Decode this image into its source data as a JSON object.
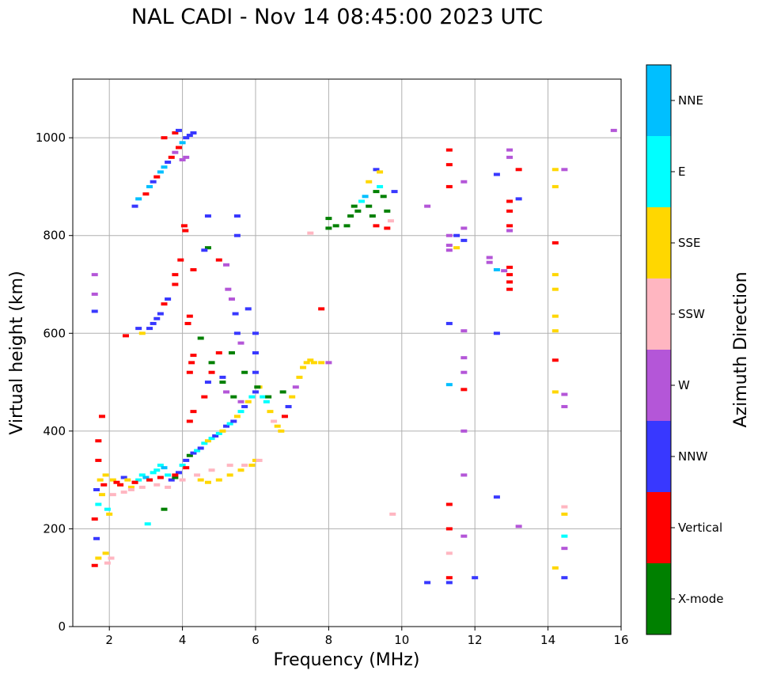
{
  "chart_data": {
    "type": "scatter",
    "title": "NAL CADI - Nov 14 08:45:00 2023 UTC",
    "xlabel": "Frequency (MHz)",
    "ylabel": "Virtual height (km)",
    "xlim": [
      1,
      16
    ],
    "ylim": [
      0,
      1120
    ],
    "xticks": [
      2,
      4,
      6,
      8,
      10,
      12,
      14,
      16
    ],
    "yticks": [
      0,
      200,
      400,
      600,
      800,
      1000
    ],
    "grid": true,
    "colorbar": {
      "title": "Azimuth Direction",
      "categories": [
        {
          "name": "X-mode",
          "color": "#008000"
        },
        {
          "name": "Vertical",
          "color": "#ff0000"
        },
        {
          "name": "NNW",
          "color": "#3838ff"
        },
        {
          "name": "W",
          "color": "#b456d8"
        },
        {
          "name": "SSW",
          "color": "#ffb6c1"
        },
        {
          "name": "SSE",
          "color": "#ffd700"
        },
        {
          "name": "E",
          "color": "#00ffff"
        },
        {
          "name": "NNE",
          "color": "#00bfff"
        }
      ]
    },
    "points": [
      [
        1.6,
        125,
        "Vertical"
      ],
      [
        1.65,
        180,
        "NNW"
      ],
      [
        1.7,
        140,
        "SSE"
      ],
      [
        1.6,
        220,
        "Vertical"
      ],
      [
        1.7,
        250,
        "E"
      ],
      [
        1.65,
        280,
        "NNW"
      ],
      [
        1.75,
        300,
        "SSE"
      ],
      [
        1.7,
        340,
        "Vertical"
      ],
      [
        1.7,
        380,
        "Vertical"
      ],
      [
        1.8,
        430,
        "Vertical"
      ],
      [
        1.6,
        720,
        "W"
      ],
      [
        1.6,
        680,
        "W"
      ],
      [
        1.6,
        645,
        "NNW"
      ],
      [
        1.8,
        270,
        "SSE"
      ],
      [
        1.85,
        290,
        "Vertical"
      ],
      [
        1.9,
        310,
        "SSE"
      ],
      [
        1.95,
        240,
        "E"
      ],
      [
        2.0,
        230,
        "SSE"
      ],
      [
        1.9,
        150,
        "SSE"
      ],
      [
        1.95,
        130,
        "SSW"
      ],
      [
        2.05,
        140,
        "SSW"
      ],
      [
        2.1,
        300,
        "SSE"
      ],
      [
        2.2,
        295,
        "Vertical"
      ],
      [
        2.3,
        290,
        "SSE"
      ],
      [
        2.4,
        305,
        "NNW"
      ],
      [
        2.5,
        300,
        "SSE"
      ],
      [
        2.6,
        285,
        "SSE"
      ],
      [
        2.7,
        295,
        "Vertical"
      ],
      [
        2.8,
        300,
        "E"
      ],
      [
        2.9,
        310,
        "E"
      ],
      [
        3.0,
        305,
        "NNE"
      ],
      [
        3.1,
        300,
        "E"
      ],
      [
        3.2,
        315,
        "E"
      ],
      [
        3.3,
        320,
        "E"
      ],
      [
        3.4,
        330,
        "E"
      ],
      [
        3.5,
        325,
        "NNE"
      ],
      [
        3.6,
        310,
        "E"
      ],
      [
        3.7,
        300,
        "NNW"
      ],
      [
        3.8,
        305,
        "X-mode"
      ],
      [
        3.9,
        315,
        "NNW"
      ],
      [
        4.0,
        330,
        "E"
      ],
      [
        4.1,
        340,
        "NNW"
      ],
      [
        4.2,
        350,
        "X-mode"
      ],
      [
        4.3,
        355,
        "NNW"
      ],
      [
        4.4,
        360,
        "E"
      ],
      [
        4.5,
        365,
        "NNW"
      ],
      [
        4.6,
        375,
        "E"
      ],
      [
        4.7,
        380,
        "SSE"
      ],
      [
        4.8,
        385,
        "E"
      ],
      [
        4.9,
        390,
        "NNW"
      ],
      [
        5.0,
        395,
        "E"
      ],
      [
        5.1,
        400,
        "SSE"
      ],
      [
        5.2,
        410,
        "NNW"
      ],
      [
        5.3,
        415,
        "E"
      ],
      [
        5.4,
        420,
        "NNW"
      ],
      [
        5.5,
        430,
        "SSE"
      ],
      [
        5.6,
        440,
        "E"
      ],
      [
        5.7,
        450,
        "NNW"
      ],
      [
        5.8,
        460,
        "SSE"
      ],
      [
        5.9,
        470,
        "E"
      ],
      [
        6.0,
        480,
        "NNW"
      ],
      [
        6.1,
        490,
        "SSE"
      ],
      [
        6.2,
        470,
        "E"
      ],
      [
        6.3,
        460,
        "E"
      ],
      [
        6.4,
        440,
        "SSE"
      ],
      [
        6.5,
        420,
        "SSW"
      ],
      [
        6.6,
        410,
        "SSE"
      ],
      [
        6.7,
        400,
        "SSE"
      ],
      [
        6.8,
        430,
        "Vertical"
      ],
      [
        6.9,
        450,
        "NNW"
      ],
      [
        7.0,
        470,
        "SSE"
      ],
      [
        7.1,
        490,
        "W"
      ],
      [
        7.2,
        510,
        "SSE"
      ],
      [
        7.3,
        530,
        "SSE"
      ],
      [
        7.4,
        540,
        "SSE"
      ],
      [
        7.5,
        545,
        "SSE"
      ],
      [
        7.6,
        540,
        "SSE"
      ],
      [
        7.8,
        540,
        "SSE"
      ],
      [
        8.0,
        540,
        "W"
      ],
      [
        4.5,
        300,
        "SSE"
      ],
      [
        4.7,
        295,
        "SSE"
      ],
      [
        5.0,
        300,
        "SSE"
      ],
      [
        5.3,
        310,
        "SSE"
      ],
      [
        5.6,
        320,
        "SSE"
      ],
      [
        5.9,
        330,
        "SSE"
      ],
      [
        6.0,
        340,
        "SSE"
      ],
      [
        2.6,
        280,
        "SSW"
      ],
      [
        2.9,
        285,
        "SSW"
      ],
      [
        3.3,
        290,
        "SSW"
      ],
      [
        3.6,
        285,
        "SSW"
      ],
      [
        4.0,
        300,
        "SSW"
      ],
      [
        4.4,
        310,
        "SSW"
      ],
      [
        4.8,
        320,
        "SSW"
      ],
      [
        5.3,
        330,
        "SSW"
      ],
      [
        5.7,
        330,
        "SSW"
      ],
      [
        6.1,
        340,
        "SSW"
      ],
      [
        2.1,
        270,
        "SSW"
      ],
      [
        2.4,
        275,
        "SSW"
      ],
      [
        2.3,
        290,
        "Vertical"
      ],
      [
        2.7,
        295,
        "Vertical"
      ],
      [
        3.1,
        300,
        "Vertical"
      ],
      [
        3.4,
        305,
        "Vertical"
      ],
      [
        3.8,
        310,
        "Vertical"
      ],
      [
        4.1,
        325,
        "Vertical"
      ],
      [
        4.2,
        420,
        "Vertical"
      ],
      [
        4.3,
        440,
        "Vertical"
      ],
      [
        4.2,
        520,
        "Vertical"
      ],
      [
        4.25,
        540,
        "Vertical"
      ],
      [
        4.3,
        555,
        "Vertical"
      ],
      [
        4.15,
        620,
        "Vertical"
      ],
      [
        4.2,
        635,
        "Vertical"
      ],
      [
        4.05,
        820,
        "Vertical"
      ],
      [
        4.08,
        810,
        "Vertical"
      ],
      [
        3.95,
        750,
        "Vertical"
      ],
      [
        3.8,
        720,
        "Vertical"
      ],
      [
        3.8,
        700,
        "Vertical"
      ],
      [
        4.3,
        730,
        "Vertical"
      ],
      [
        3.05,
        210,
        "E"
      ],
      [
        3.5,
        240,
        "X-mode"
      ],
      [
        4.5,
        590,
        "X-mode"
      ],
      [
        4.8,
        540,
        "X-mode"
      ],
      [
        5.1,
        500,
        "X-mode"
      ],
      [
        5.4,
        470,
        "X-mode"
      ],
      [
        5.35,
        560,
        "X-mode"
      ],
      [
        5.7,
        520,
        "X-mode"
      ],
      [
        6.05,
        490,
        "X-mode"
      ],
      [
        6.35,
        470,
        "X-mode"
      ],
      [
        6.75,
        480,
        "X-mode"
      ],
      [
        4.7,
        775,
        "X-mode"
      ],
      [
        4.6,
        770,
        "NNW"
      ],
      [
        5.0,
        750,
        "Vertical"
      ],
      [
        5.2,
        740,
        "W"
      ],
      [
        5.25,
        690,
        "W"
      ],
      [
        5.35,
        670,
        "W"
      ],
      [
        5.45,
        640,
        "NNW"
      ],
      [
        5.5,
        600,
        "NNW"
      ],
      [
        5.6,
        580,
        "W"
      ],
      [
        5.0,
        560,
        "Vertical"
      ],
      [
        4.8,
        520,
        "Vertical"
      ],
      [
        4.7,
        500,
        "NNW"
      ],
      [
        4.6,
        470,
        "Vertical"
      ],
      [
        5.1,
        510,
        "NNW"
      ],
      [
        5.2,
        480,
        "W"
      ],
      [
        5.6,
        460,
        "W"
      ],
      [
        6.0,
        520,
        "NNW"
      ],
      [
        6.0,
        560,
        "NNW"
      ],
      [
        6.0,
        600,
        "NNW"
      ],
      [
        5.8,
        650,
        "NNW"
      ],
      [
        5.5,
        800,
        "NNW"
      ],
      [
        5.5,
        840,
        "NNW"
      ],
      [
        4.7,
        840,
        "NNW"
      ],
      [
        3.1,
        610,
        "NNW"
      ],
      [
        3.2,
        620,
        "NNW"
      ],
      [
        3.3,
        630,
        "NNW"
      ],
      [
        3.4,
        640,
        "NNW"
      ],
      [
        3.5,
        660,
        "Vertical"
      ],
      [
        3.6,
        670,
        "NNW"
      ],
      [
        2.8,
        610,
        "NNW"
      ],
      [
        2.9,
        600,
        "SSE"
      ],
      [
        2.45,
        595,
        "Vertical"
      ],
      [
        2.7,
        860,
        "NNW"
      ],
      [
        2.8,
        875,
        "NNE"
      ],
      [
        3.0,
        885,
        "Vertical"
      ],
      [
        3.1,
        900,
        "NNE"
      ],
      [
        3.2,
        910,
        "NNW"
      ],
      [
        3.3,
        920,
        "Vertical"
      ],
      [
        3.4,
        930,
        "NNE"
      ],
      [
        3.5,
        940,
        "NNE"
      ],
      [
        3.6,
        950,
        "NNW"
      ],
      [
        3.7,
        960,
        "Vertical"
      ],
      [
        3.8,
        970,
        "W"
      ],
      [
        3.9,
        980,
        "Vertical"
      ],
      [
        4.0,
        990,
        "NNE"
      ],
      [
        4.1,
        1000,
        "NNW"
      ],
      [
        4.2,
        1005,
        "NNW"
      ],
      [
        4.3,
        1010,
        "NNW"
      ],
      [
        3.8,
        1010,
        "Vertical"
      ],
      [
        3.5,
        1000,
        "Vertical"
      ],
      [
        3.9,
        1015,
        "NNW"
      ],
      [
        4.0,
        955,
        "W"
      ],
      [
        4.1,
        960,
        "W"
      ],
      [
        8.0,
        815,
        "X-mode"
      ],
      [
        8.0,
        835,
        "X-mode"
      ],
      [
        8.2,
        820,
        "X-mode"
      ],
      [
        8.5,
        820,
        "X-mode"
      ],
      [
        8.6,
        840,
        "X-mode"
      ],
      [
        8.7,
        860,
        "X-mode"
      ],
      [
        8.8,
        850,
        "X-mode"
      ],
      [
        8.9,
        870,
        "E"
      ],
      [
        9.0,
        880,
        "NNE"
      ],
      [
        9.1,
        860,
        "X-mode"
      ],
      [
        9.2,
        840,
        "X-mode"
      ],
      [
        9.3,
        890,
        "X-mode"
      ],
      [
        9.4,
        900,
        "E"
      ],
      [
        9.5,
        880,
        "X-mode"
      ],
      [
        9.6,
        850,
        "X-mode"
      ],
      [
        9.7,
        830,
        "SSW"
      ],
      [
        9.8,
        890,
        "NNW"
      ],
      [
        9.3,
        935,
        "NNW"
      ],
      [
        9.4,
        930,
        "SSE"
      ],
      [
        9.1,
        910,
        "SSE"
      ],
      [
        9.3,
        820,
        "Vertical"
      ],
      [
        9.6,
        815,
        "Vertical"
      ],
      [
        7.5,
        805,
        "SSW"
      ],
      [
        7.8,
        650,
        "Vertical"
      ],
      [
        10.7,
        860,
        "W"
      ],
      [
        9.75,
        230,
        "SSW"
      ],
      [
        10.7,
        90,
        "NNW"
      ],
      [
        11.3,
        975,
        "Vertical"
      ],
      [
        11.3,
        945,
        "Vertical"
      ],
      [
        11.3,
        900,
        "Vertical"
      ],
      [
        11.3,
        800,
        "W"
      ],
      [
        11.3,
        780,
        "W"
      ],
      [
        11.3,
        770,
        "W"
      ],
      [
        11.3,
        620,
        "NNW"
      ],
      [
        11.3,
        495,
        "NNE"
      ],
      [
        11.3,
        250,
        "Vertical"
      ],
      [
        11.3,
        200,
        "Vertical"
      ],
      [
        11.3,
        150,
        "SSW"
      ],
      [
        11.3,
        100,
        "Vertical"
      ],
      [
        11.3,
        90,
        "NNW"
      ],
      [
        11.5,
        775,
        "SSE"
      ],
      [
        11.5,
        800,
        "NNW"
      ],
      [
        11.7,
        910,
        "W"
      ],
      [
        11.7,
        815,
        "W"
      ],
      [
        11.7,
        790,
        "NNW"
      ],
      [
        11.7,
        605,
        "W"
      ],
      [
        11.7,
        550,
        "W"
      ],
      [
        11.7,
        520,
        "W"
      ],
      [
        11.7,
        485,
        "Vertical"
      ],
      [
        11.7,
        400,
        "W"
      ],
      [
        11.7,
        310,
        "W"
      ],
      [
        11.7,
        185,
        "W"
      ],
      [
        12.0,
        100,
        "NNW"
      ],
      [
        12.4,
        755,
        "W"
      ],
      [
        12.4,
        745,
        "W"
      ],
      [
        12.6,
        925,
        "NNW"
      ],
      [
        12.6,
        730,
        "NNE"
      ],
      [
        12.6,
        600,
        "NNW"
      ],
      [
        12.6,
        265,
        "NNW"
      ],
      [
        12.8,
        728,
        "W"
      ],
      [
        12.95,
        975,
        "W"
      ],
      [
        12.95,
        960,
        "W"
      ],
      [
        12.95,
        870,
        "Vertical"
      ],
      [
        12.95,
        850,
        "Vertical"
      ],
      [
        12.95,
        820,
        "Vertical"
      ],
      [
        12.95,
        810,
        "W"
      ],
      [
        12.95,
        735,
        "Vertical"
      ],
      [
        12.95,
        720,
        "Vertical"
      ],
      [
        12.95,
        705,
        "Vertical"
      ],
      [
        12.95,
        690,
        "Vertical"
      ],
      [
        13.2,
        935,
        "Vertical"
      ],
      [
        13.2,
        875,
        "NNW"
      ],
      [
        13.2,
        205,
        "W"
      ],
      [
        14.2,
        935,
        "SSE"
      ],
      [
        14.2,
        900,
        "SSE"
      ],
      [
        14.2,
        785,
        "Vertical"
      ],
      [
        14.2,
        720,
        "SSE"
      ],
      [
        14.2,
        690,
        "SSE"
      ],
      [
        14.2,
        635,
        "SSE"
      ],
      [
        14.2,
        605,
        "SSE"
      ],
      [
        14.2,
        545,
        "Vertical"
      ],
      [
        14.2,
        480,
        "SSE"
      ],
      [
        14.2,
        120,
        "SSE"
      ],
      [
        14.45,
        935,
        "W"
      ],
      [
        14.45,
        475,
        "W"
      ],
      [
        14.45,
        450,
        "W"
      ],
      [
        14.45,
        245,
        "SSW"
      ],
      [
        14.45,
        230,
        "SSE"
      ],
      [
        14.45,
        185,
        "E"
      ],
      [
        14.45,
        160,
        "W"
      ],
      [
        14.45,
        100,
        "NNW"
      ],
      [
        15.8,
        1015,
        "W"
      ]
    ]
  }
}
